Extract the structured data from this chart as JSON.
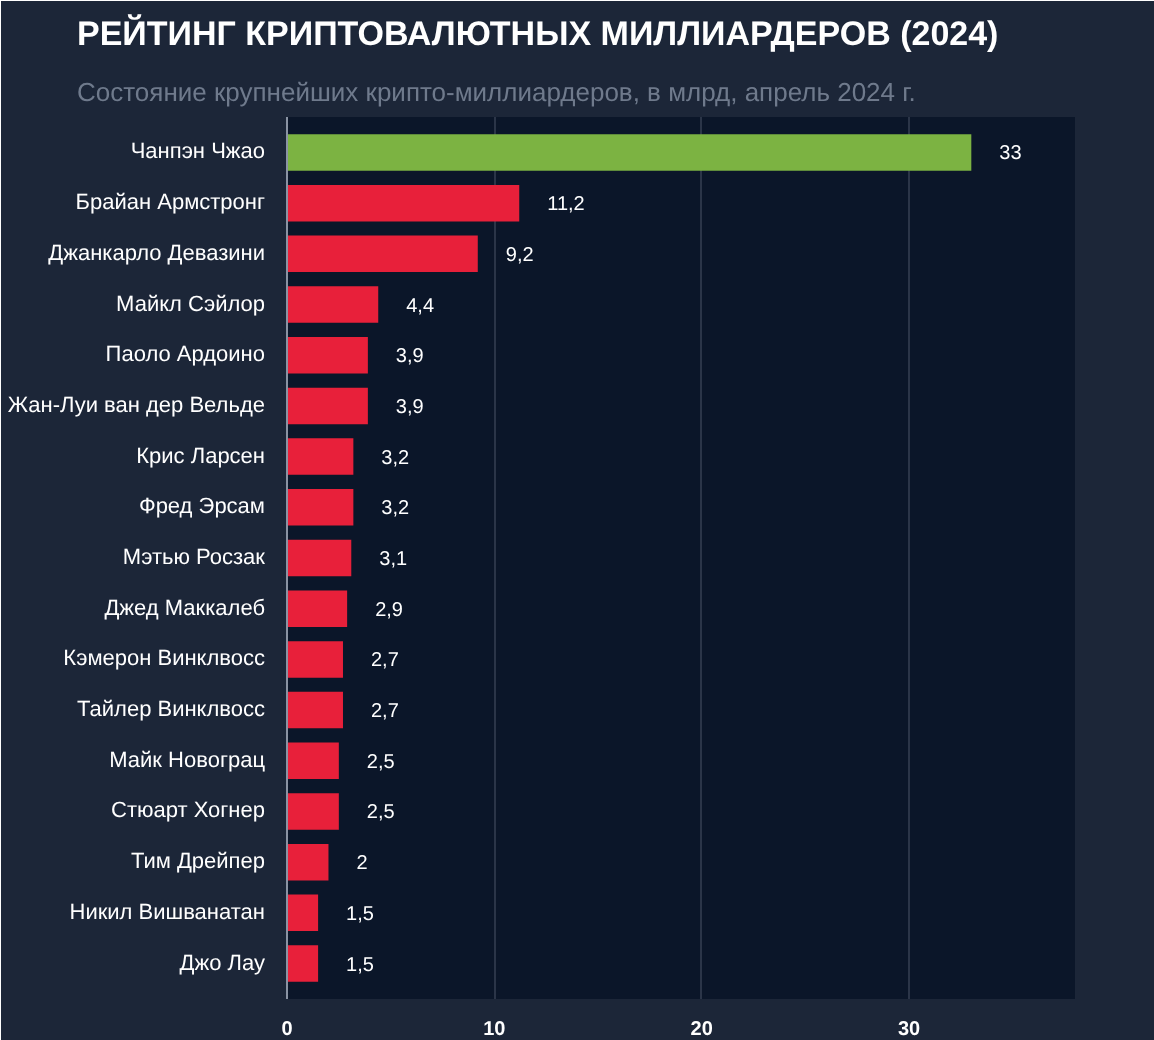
{
  "chart_data": {
    "type": "bar",
    "orientation": "horizontal",
    "title": "РЕЙТИНГ КРИПТОВАЛЮТНЫХ МИЛЛИАРДЕРОВ (2024)",
    "subtitle": "Состояние крупнейших крипто-миллиардеров, в млрд, апрель 2024 г.",
    "categories": [
      "Чанпэн Чжао",
      "Брайан Армстронг",
      "Джанкарло Девазини",
      "Майкл Сэйлор",
      "Паоло Ардоино",
      "Жан-Луи ван дер Вельде",
      "Крис Ларсен",
      "Фред Эрсам",
      "Мэтью Росзак",
      "Джед Маккалеб",
      "Кэмерон Винклвосс",
      "Тайлер Винклвосс",
      "Майк Новограц",
      "Стюарт Хогнер",
      "Тим Дрейпер",
      "Никил Вишванатан",
      "Джо Лау"
    ],
    "values": [
      33,
      11.2,
      9.2,
      4.4,
      3.9,
      3.9,
      3.2,
      3.2,
      3.1,
      2.9,
      2.7,
      2.7,
      2.5,
      2.5,
      2,
      1.5,
      1.5
    ],
    "value_labels": [
      "33",
      "11,2",
      "9,2",
      "4,4",
      "3,9",
      "3,9",
      "3,2",
      "3,2",
      "3,1",
      "2,9",
      "2,7",
      "2,7",
      "2,5",
      "2,5",
      "2",
      "1,5",
      "1,5"
    ],
    "colors": [
      "#7cb342",
      "#e8203a",
      "#e8203a",
      "#e8203a",
      "#e8203a",
      "#e8203a",
      "#e8203a",
      "#e8203a",
      "#e8203a",
      "#e8203a",
      "#e8203a",
      "#e8203a",
      "#e8203a",
      "#e8203a",
      "#e8203a",
      "#e8203a",
      "#e8203a"
    ],
    "xlim": [
      0,
      38
    ],
    "xticks": [
      0,
      10,
      20,
      30
    ],
    "grid": "x"
  }
}
